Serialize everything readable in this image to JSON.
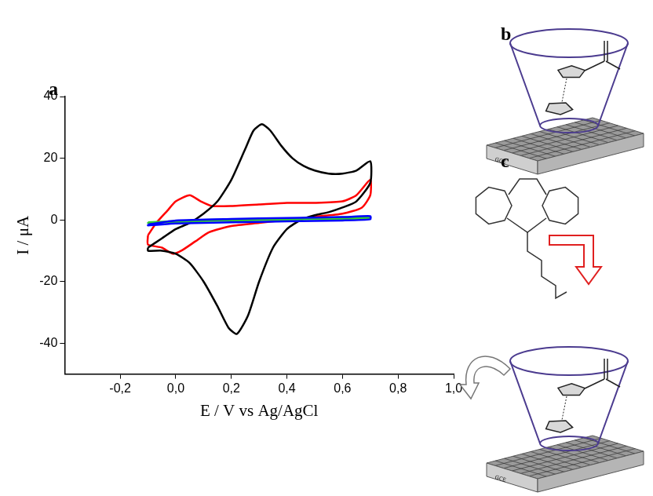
{
  "chart_data": {
    "type": "line",
    "x_label": "E / V vs Ag/AgCl",
    "y_label": "I / μA",
    "xlim": [
      -0.4,
      1.0
    ],
    "ylim": [
      -50,
      40
    ],
    "xticks": [
      {
        "value": -0.2,
        "label": "-0,2"
      },
      {
        "value": 0,
        "label": "0,0"
      },
      {
        "value": 0.2,
        "label": "0,2"
      },
      {
        "value": 0.4,
        "label": "0,4"
      },
      {
        "value": 0.6,
        "label": "0,6"
      },
      {
        "value": 0.8,
        "label": "0,8"
      },
      {
        "value": 1.0,
        "label": "1,0"
      }
    ],
    "yticks": [
      -40,
      -20,
      0,
      20,
      40
    ],
    "grid": false,
    "series": [
      {
        "color": "#0000ff",
        "x": [
          -0.1,
          0.0,
          0.2,
          0.4,
          0.6,
          0.7,
          0.7,
          0.6,
          0.4,
          0.2,
          0.0,
          -0.1,
          -0.1
        ],
        "values": [
          -1.5,
          -0.2,
          0.3,
          0.6,
          0.9,
          1.2,
          0.2,
          -0.2,
          -0.5,
          -0.8,
          -1.2,
          -1.8,
          -1.5
        ]
      },
      {
        "color": "#33cc33",
        "x": [
          -0.1,
          0.1,
          0.3,
          0.5,
          0.7,
          0.7,
          0.5,
          0.3,
          0.1,
          -0.1,
          -0.1
        ],
        "values": [
          -0.8,
          0,
          0.3,
          0.6,
          1,
          0.5,
          0.2,
          -0.1,
          -0.4,
          -1,
          -0.8
        ]
      },
      {
        "color": "#000000",
        "x": [
          -0.1,
          -0.05,
          0.0,
          0.05,
          0.1,
          0.15,
          0.2,
          0.25,
          0.28,
          0.31,
          0.34,
          0.38,
          0.42,
          0.46,
          0.5,
          0.55,
          0.6,
          0.65,
          0.7,
          0.7,
          0.65,
          0.6,
          0.55,
          0.5,
          0.45,
          0.4,
          0.35,
          0.3,
          0.26,
          0.22,
          0.19,
          0.15,
          0.1,
          0.05,
          0.0,
          -0.05,
          -0.1,
          -0.1
        ],
        "values": [
          -9,
          -6,
          -3,
          -1,
          2,
          6,
          13,
          23,
          29,
          31,
          29,
          24,
          20,
          17.5,
          16,
          15,
          15,
          16,
          19,
          12,
          6,
          4,
          2.5,
          1.5,
          0,
          -3,
          -9,
          -20,
          -31,
          -37,
          -35,
          -28,
          -20,
          -14,
          -11,
          -10,
          -10,
          -9
        ]
      },
      {
        "color": "#ff0000",
        "x": [
          -0.1,
          -0.07,
          -0.03,
          0.0,
          0.05,
          0.09,
          0.13,
          0.2,
          0.3,
          0.4,
          0.5,
          0.6,
          0.65,
          0.7,
          0.7,
          0.67,
          0.6,
          0.5,
          0.4,
          0.3,
          0.2,
          0.12,
          0.07,
          0.02,
          -0.01,
          -0.05,
          -0.1,
          -0.1
        ],
        "values": [
          -5,
          -1,
          3,
          6,
          8,
          6,
          4.5,
          4.5,
          5,
          5.5,
          5.5,
          6,
          8,
          13,
          8,
          4,
          2,
          1,
          0,
          -1,
          -2,
          -4,
          -7,
          -10,
          -11,
          -9,
          -8,
          -5
        ]
      }
    ]
  },
  "panels": [
    {
      "label": "a"
    },
    {
      "label": "b",
      "electrode_label": "GCE"
    },
    {
      "label": "c",
      "electrode_label": "GCE"
    }
  ]
}
